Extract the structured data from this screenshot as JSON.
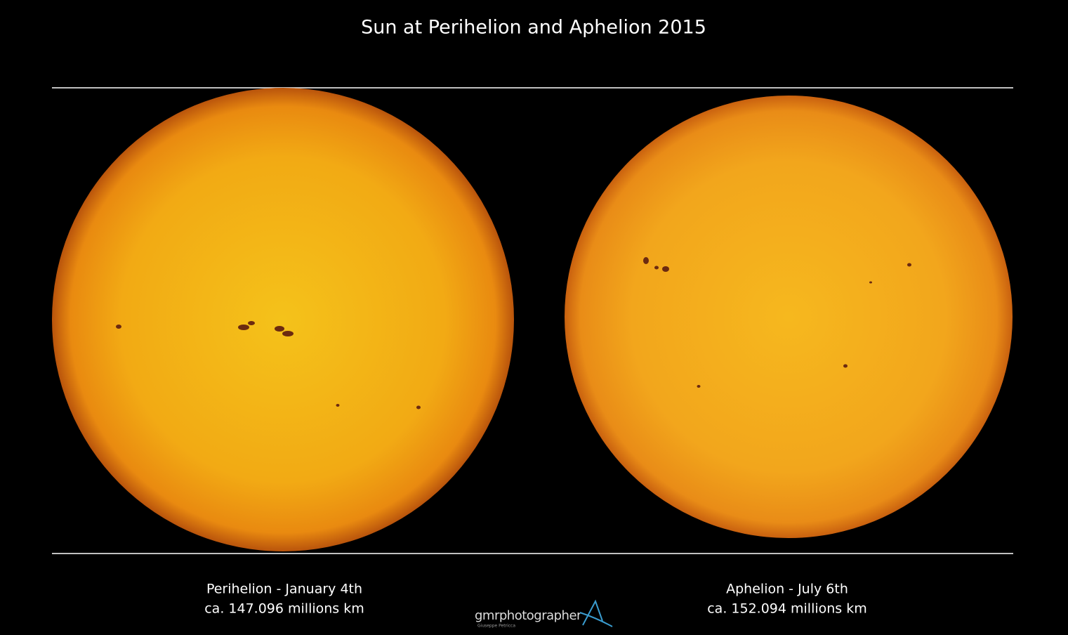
{
  "title": "Sun at Perihelion and Aphelion 2015",
  "panels": [
    {
      "label": "Perihelion - January 4th",
      "distance": "ca. 147.096 millions km"
    },
    {
      "label": "Aphelion - July 6th",
      "distance": "ca. 152.094 millions km"
    }
  ],
  "watermark": {
    "brand": "gmrphotographer",
    "author": "Giuseppe Petricca"
  }
}
